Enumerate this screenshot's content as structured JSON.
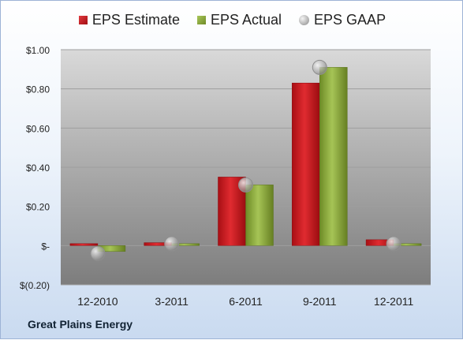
{
  "company": "Great Plains Energy",
  "chart_data": {
    "type": "bar",
    "categories": [
      "12-2010",
      "3-2011",
      "6-2011",
      "9-2011",
      "12-2011"
    ],
    "series": [
      {
        "name": "EPS Estimate",
        "color": "#c0161b",
        "values": [
          0.01,
          0.015,
          0.35,
          0.83,
          0.03
        ],
        "mark": "bar"
      },
      {
        "name": "EPS Actual",
        "color": "#88a83a",
        "values": [
          -0.03,
          0.01,
          0.31,
          0.91,
          0.01
        ],
        "mark": "bar"
      },
      {
        "name": "EPS GAAP",
        "color": "#b0b0b0",
        "values": [
          -0.04,
          0.01,
          0.31,
          0.91,
          0.01
        ],
        "mark": "circle"
      }
    ],
    "yticks": [
      -0.2,
      0,
      0.2,
      0.4,
      0.6,
      0.8,
      1.0
    ],
    "ytick_labels": [
      "$(0.20)",
      "$-",
      "$0.20",
      "$0.40",
      "$0.60",
      "$0.80",
      "$1.00"
    ],
    "ylim": [
      -0.2,
      1.0
    ],
    "grid": true,
    "legend": "top"
  }
}
